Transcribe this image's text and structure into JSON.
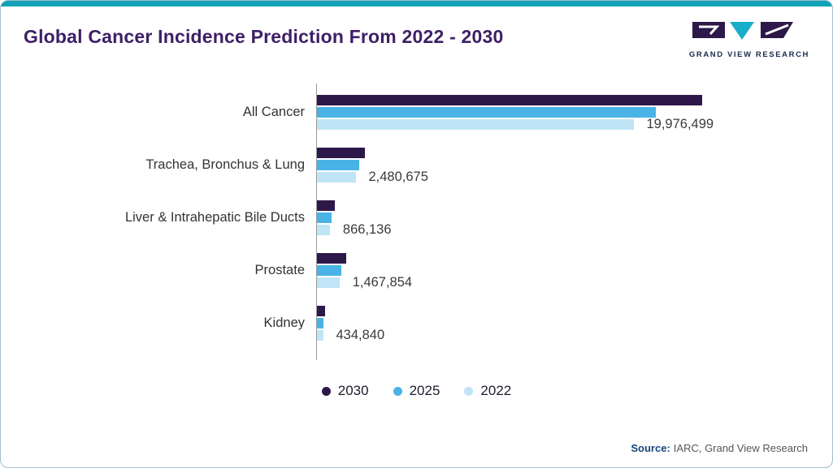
{
  "header": {
    "title": "Global Cancer Incidence Prediction From 2022 - 2030",
    "logo_text": "GRAND VIEW RESEARCH"
  },
  "colors": {
    "accent": "#12a2b7",
    "title": "#3d1f66",
    "border": "#a3bdc9",
    "axis": "#9b9b9b"
  },
  "chart_data": {
    "type": "bar",
    "orientation": "horizontal",
    "title": "Global Cancer Incidence Prediction From 2022 - 2030",
    "categories": [
      "All Cancer",
      "Trachea, Bronchus & Lung",
      "Liver & Intrahepatic Bile Ducts",
      "Prostate",
      "Kidney"
    ],
    "series": [
      {
        "name": "2030",
        "color": "#2d1849",
        "values": [
          24300000,
          3050000,
          1150000,
          1880000,
          560000
        ]
      },
      {
        "name": "2025",
        "color": "#49b3e6",
        "values": [
          21400000,
          2700000,
          960000,
          1560000,
          470000
        ]
      },
      {
        "name": "2022",
        "color": "#bfe5f6",
        "values": [
          19976499,
          2480675,
          866136,
          1467854,
          434840
        ]
      }
    ],
    "value_labels": [
      "19,976,499",
      "2,480,675",
      "866,136",
      "1,467,854",
      "434,840"
    ],
    "value_label_series": "2022",
    "xmax": 24300000,
    "legend": [
      "2030",
      "2025",
      "2022"
    ],
    "legend_position": "bottom",
    "grid": false
  },
  "footer": {
    "source_label": "Source:",
    "source_text": "IARC, Grand View Research"
  }
}
